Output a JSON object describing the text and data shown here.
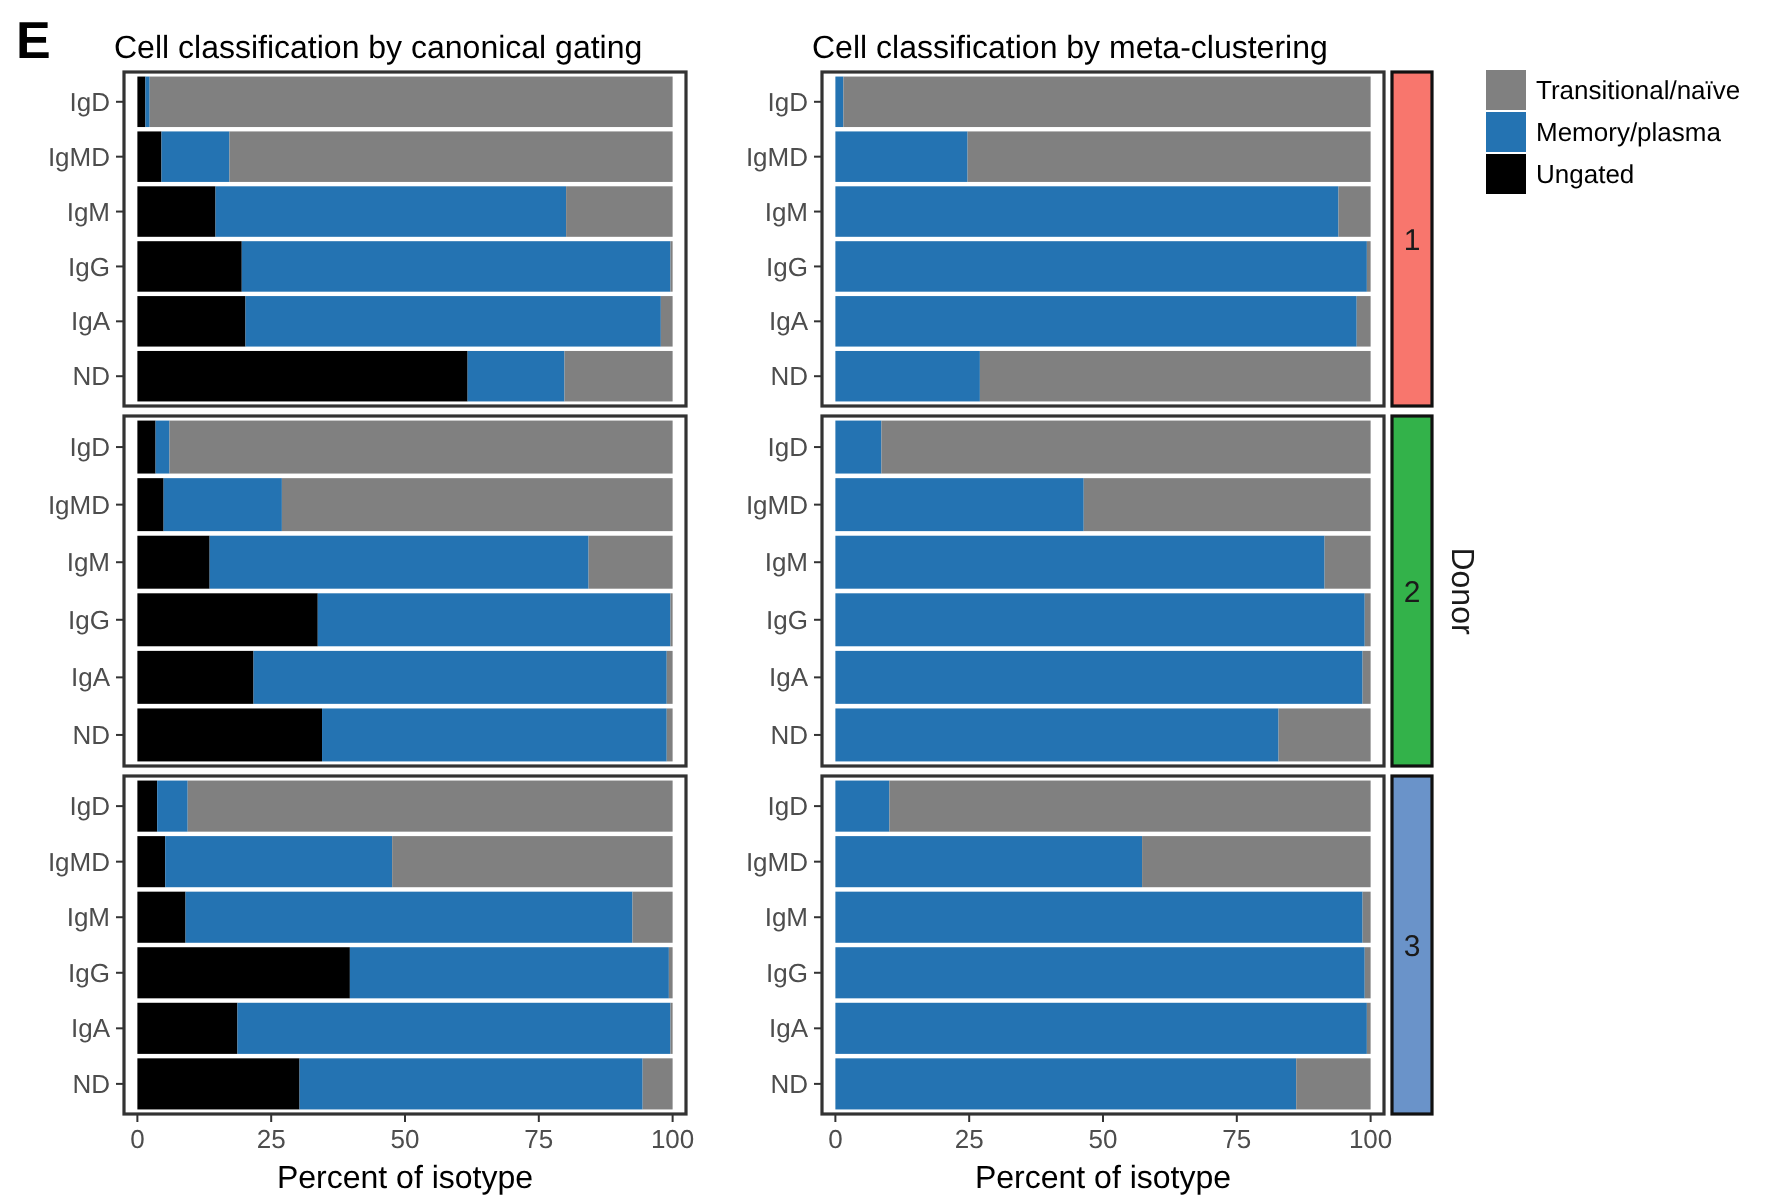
{
  "chart_data": [
    {
      "type": "bar",
      "orientation": "horizontal",
      "stacked": true,
      "title": "Cell classification by canonical gating",
      "annotations": [
        "E"
      ],
      "categories": [
        "IgD",
        "IgMD",
        "IgM",
        "IgG",
        "IgA",
        "ND"
      ],
      "xlim": [
        -2.5,
        102.5
      ],
      "tick_labels": "y",
      "legend": "right",
      "series": [
        {
          "name": "Ungated",
          "color": "#000000",
          "values": [
            1.5,
            4.5,
            14.6,
            19.5,
            20.2,
            61.7
          ]
        },
        {
          "name": "Memory/plasma",
          "color": "#2473b2",
          "values": [
            0.8,
            12.7,
            65.5,
            80.1,
            77.6,
            18.1
          ]
        },
        {
          "name": "Transitional/naïve",
          "color": "#808080",
          "values": [
            97.7,
            82.8,
            19.9,
            0.4,
            2.2,
            20.2
          ]
        }
      ]
    },
    {
      "type": "bar",
      "orientation": "horizontal",
      "stacked": true,
      "title": "Cell classification by meta-clustering",
      "annotations": [
        "1"
      ],
      "categories": [
        "IgD",
        "IgMD",
        "IgM",
        "IgG",
        "IgA",
        "ND"
      ],
      "xlim": [
        -2.5,
        102.5
      ],
      "tick_labels": "y",
      "series": [
        {
          "color": "#2473b2",
          "values": [
            1.5,
            24.7,
            94.0,
            99.3,
            97.4,
            27.0
          ]
        },
        {
          "color": "#808080",
          "values": [
            98.5,
            75.3,
            6.0,
            0.7,
            2.6,
            73.0
          ]
        }
      ]
    },
    {
      "type": "bar",
      "orientation": "horizontal",
      "stacked": true,
      "categories": [
        "IgD",
        "IgMD",
        "IgM",
        "IgG",
        "IgA",
        "ND"
      ],
      "xlim": [
        -2.5,
        102.5
      ],
      "tick_labels": "y",
      "series": [
        {
          "color": "#000000",
          "values": [
            3.4,
            4.9,
            13.5,
            33.7,
            21.7,
            34.5
          ]
        },
        {
          "color": "#2473b2",
          "values": [
            2.6,
            22.1,
            70.8,
            65.9,
            77.2,
            64.4
          ]
        },
        {
          "color": "#808080",
          "values": [
            94.0,
            73.0,
            15.7,
            0.4,
            1.1,
            1.1
          ]
        }
      ]
    },
    {
      "type": "bar",
      "orientation": "horizontal",
      "stacked": true,
      "annotations": [
        "2"
      ],
      "y2label": "Donor",
      "categories": [
        "IgD",
        "IgMD",
        "IgM",
        "IgG",
        "IgA",
        "ND"
      ],
      "xlim": [
        -2.5,
        102.5
      ],
      "tick_labels": "y",
      "series": [
        {
          "color": "#2473b2",
          "values": [
            8.6,
            46.4,
            91.4,
            98.9,
            98.5,
            82.8
          ]
        },
        {
          "color": "#808080",
          "values": [
            91.4,
            53.6,
            8.6,
            1.1,
            1.5,
            17.2
          ]
        }
      ]
    },
    {
      "type": "bar",
      "orientation": "horizontal",
      "stacked": true,
      "xlabel": "Percent of isotype",
      "categories": [
        "IgD",
        "IgMD",
        "IgM",
        "IgG",
        "IgA",
        "ND"
      ],
      "xlim": [
        -2.5,
        102.5
      ],
      "xticks": [
        0,
        25,
        50,
        75,
        100
      ],
      "series": [
        {
          "color": "#000000",
          "values": [
            3.7,
            5.2,
            9.0,
            39.7,
            18.7,
            30.3
          ]
        },
        {
          "color": "#2473b2",
          "values": [
            5.7,
            42.4,
            83.5,
            59.6,
            80.9,
            64.1
          ]
        },
        {
          "color": "#808080",
          "values": [
            90.6,
            52.4,
            7.5,
            0.7,
            0.4,
            5.6
          ]
        }
      ]
    },
    {
      "type": "bar",
      "orientation": "horizontal",
      "stacked": true,
      "annotations": [
        "3"
      ],
      "xlabel": "Percent of isotype",
      "categories": [
        "IgD",
        "IgMD",
        "IgM",
        "IgG",
        "IgA",
        "ND"
      ],
      "xlim": [
        -2.5,
        102.5
      ],
      "xticks": [
        0,
        25,
        50,
        75,
        100
      ],
      "series": [
        {
          "color": "#2473b2",
          "values": [
            10.1,
            57.3,
            98.5,
            98.9,
            99.3,
            86.1
          ]
        },
        {
          "color": "#808080",
          "values": [
            89.9,
            42.7,
            1.5,
            1.1,
            0.7,
            13.9
          ]
        }
      ]
    }
  ]
}
